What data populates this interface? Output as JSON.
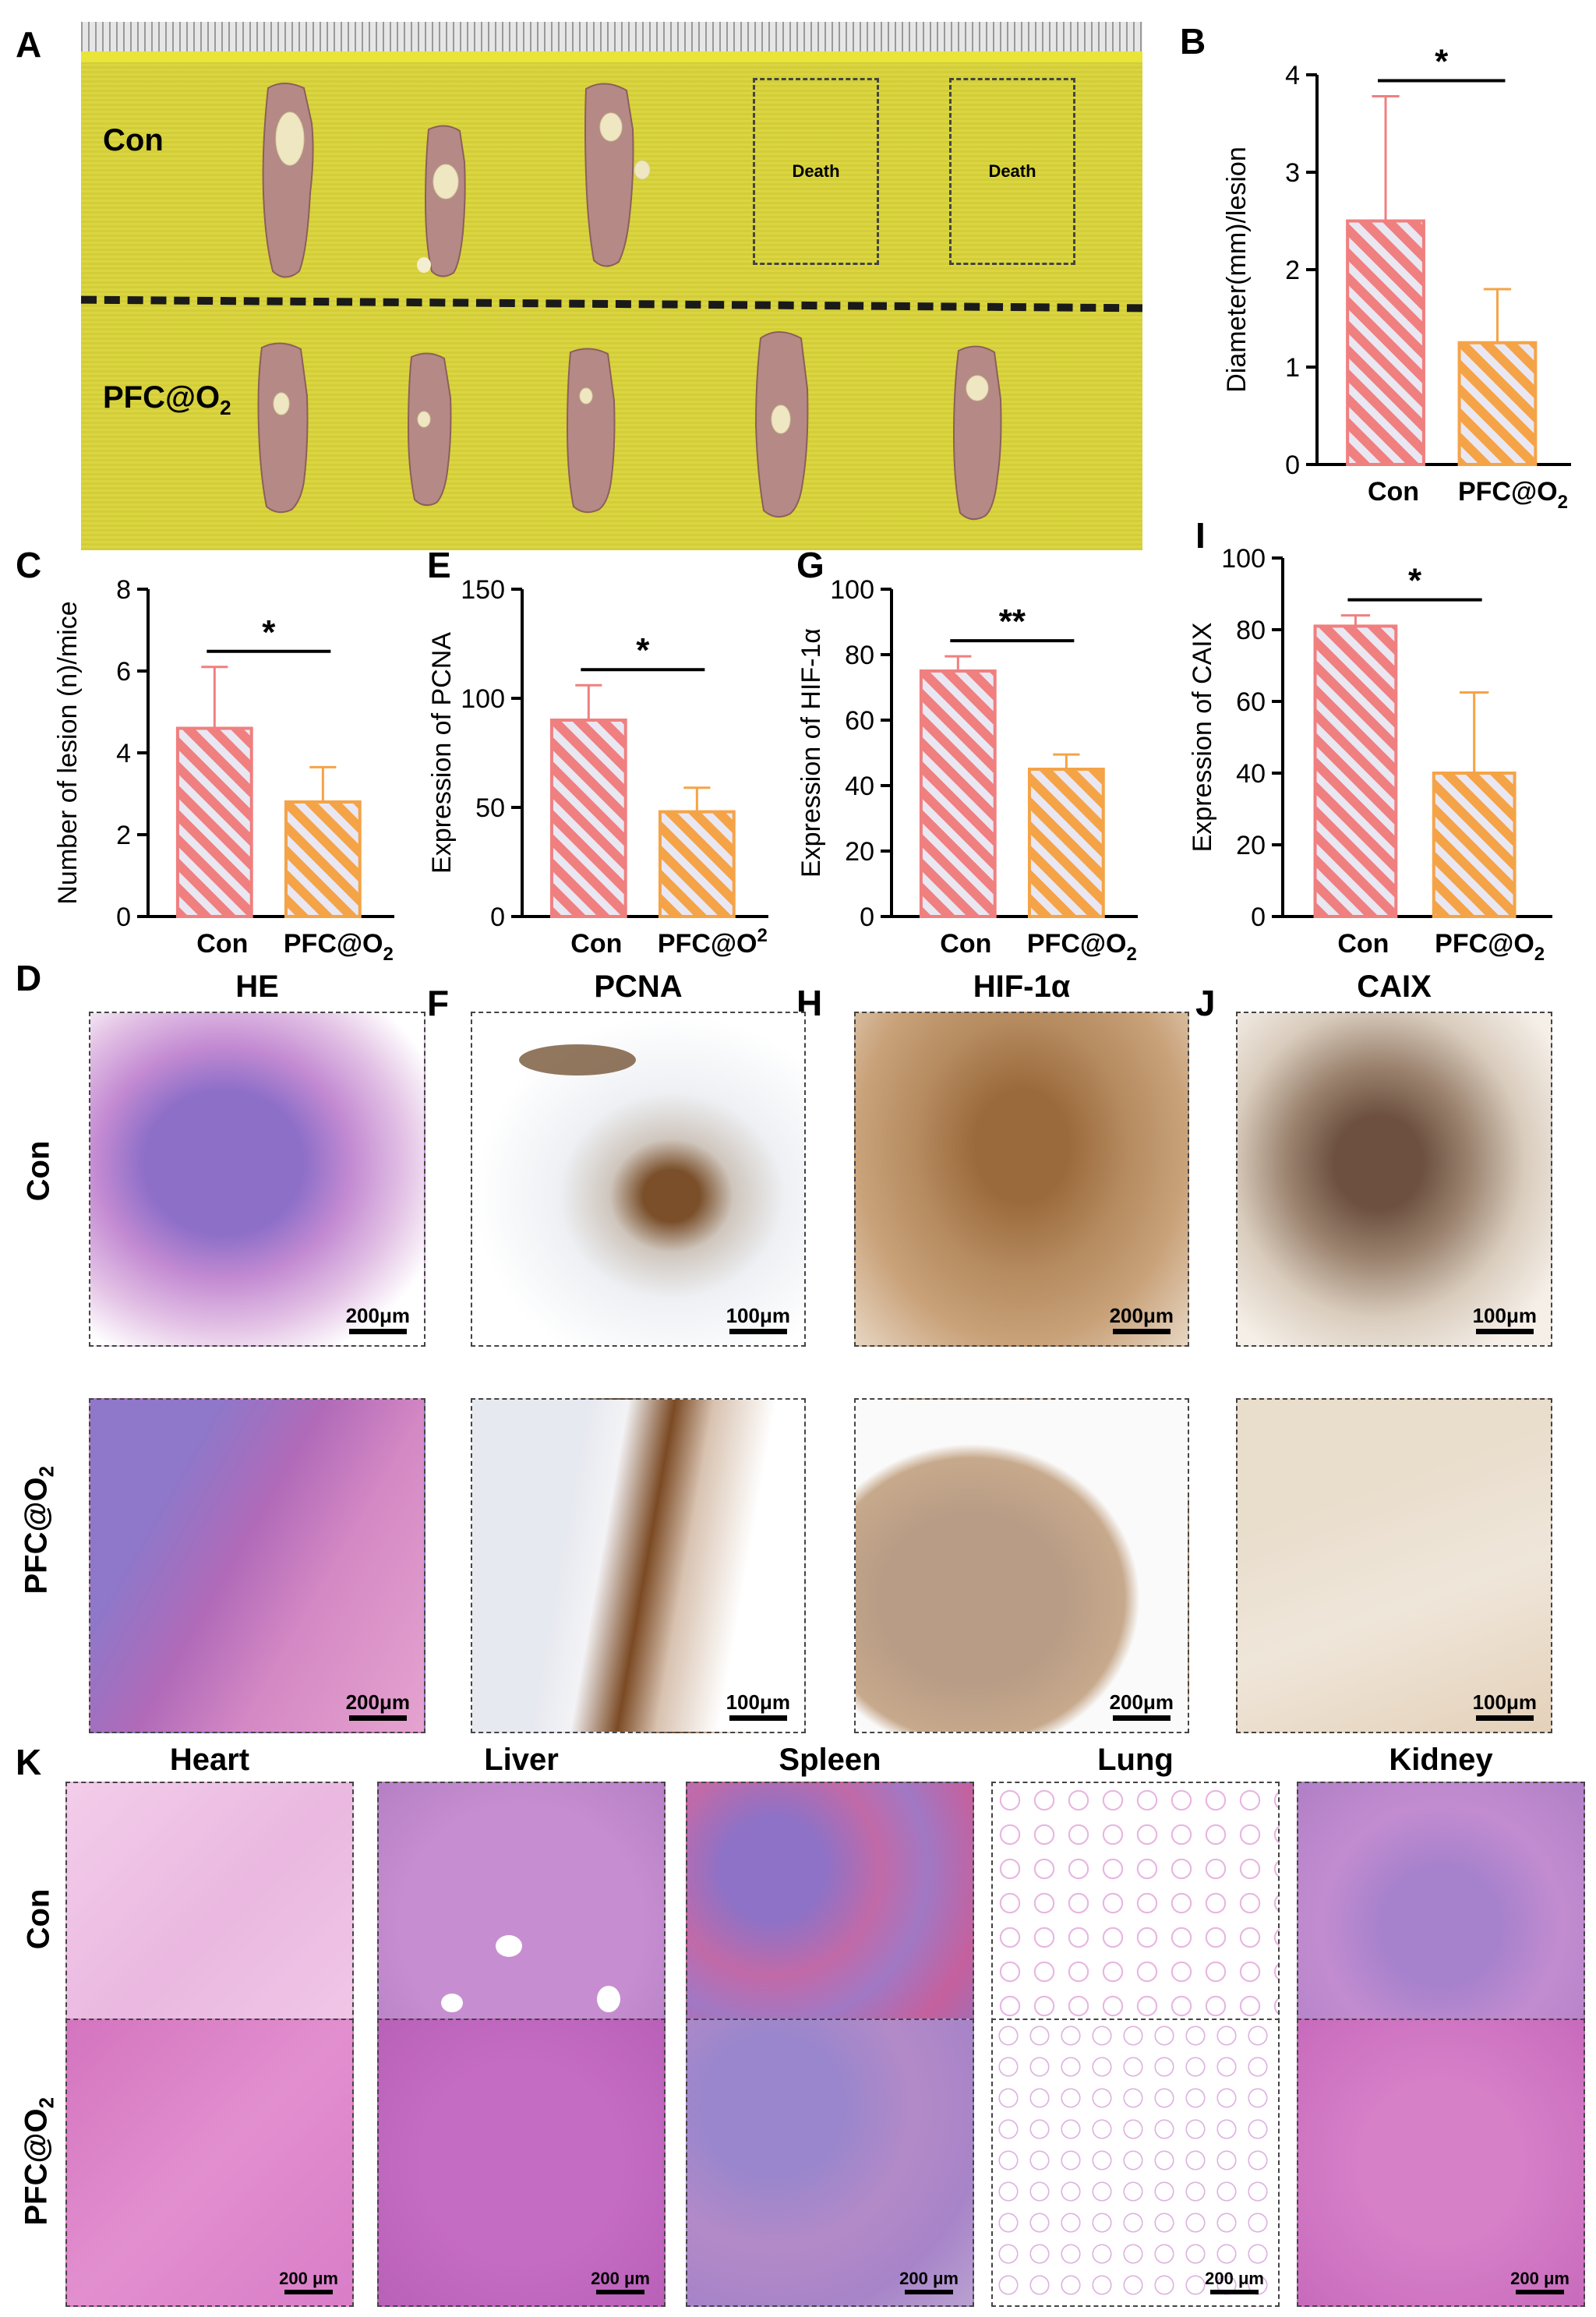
{
  "panel_letters": {
    "A": "A",
    "B": "B",
    "C": "C",
    "D": "D",
    "E": "E",
    "F": "F",
    "G": "G",
    "H": "H",
    "I": "I",
    "J": "J",
    "K": "K"
  },
  "photo": {
    "row_con": "Con",
    "row_pfc": "PFC@O",
    "row_pfc_sub": "2",
    "death1": "Death",
    "death2": "Death"
  },
  "colors": {
    "con_bar": "#f07f7f",
    "pfc_bar": "#f5a347",
    "photo_bg": "#d9d43a",
    "he_stain": "#b16fc0",
    "ihc_brown": "#8a5a2c"
  },
  "chart_data": [
    {
      "panel": "B",
      "type": "bar",
      "categories": [
        "Con",
        "PFC@O2"
      ],
      "values": [
        2.5,
        1.25
      ],
      "errors": [
        1.28,
        0.55
      ],
      "ylabel": "Diameter(mm)/lesion",
      "ylim": [
        0,
        4
      ],
      "yticks": [
        "0",
        "1",
        "2",
        "3",
        "4"
      ],
      "significance": "*",
      "xlabels": {
        "con": "Con",
        "pfc": "PFC@O",
        "pfc_sub": "2"
      }
    },
    {
      "panel": "C",
      "type": "bar",
      "categories": [
        "Con",
        "PFC@O2"
      ],
      "values": [
        4.6,
        2.8
      ],
      "errors": [
        1.5,
        0.85
      ],
      "ylabel": "Number of lesion (n)/mice",
      "ylim": [
        0,
        8
      ],
      "yticks": [
        "0",
        "2",
        "4",
        "6",
        "8"
      ],
      "significance": "*",
      "xlabels": {
        "con": "Con",
        "pfc": "PFC@O",
        "pfc_sub": "2"
      }
    },
    {
      "panel": "E",
      "type": "bar",
      "categories": [
        "Con",
        "PFC@O2"
      ],
      "values": [
        90,
        48
      ],
      "errors": [
        16,
        11
      ],
      "ylabel": "Expression of PCNA",
      "ylim": [
        0,
        150
      ],
      "yticks": [
        "0",
        "50",
        "100",
        "150"
      ],
      "significance": "*",
      "xlabels": {
        "con": "Con",
        "pfc": "PFC@O",
        "pfc_sup": "2"
      }
    },
    {
      "panel": "G",
      "type": "bar",
      "categories": [
        "Con",
        "PFC@O2"
      ],
      "values": [
        75,
        45
      ],
      "errors": [
        4.5,
        4.5
      ],
      "ylabel": "Expression of HIF-1α",
      "ylim": [
        0,
        100
      ],
      "yticks": [
        "0",
        "20",
        "40",
        "60",
        "80",
        "100"
      ],
      "significance": "**",
      "xlabels": {
        "con": "Con",
        "pfc": "PFC@O",
        "pfc_sub": "2"
      }
    },
    {
      "panel": "I",
      "type": "bar",
      "categories": [
        "Con",
        "PFC@O2"
      ],
      "values": [
        81,
        40
      ],
      "errors": [
        3,
        22.5
      ],
      "ylabel": "Expression of CAIX",
      "ylim": [
        0,
        100
      ],
      "yticks": [
        "0",
        "20",
        "40",
        "60",
        "80",
        "100"
      ],
      "significance": "*",
      "xlabels": {
        "con": "Con",
        "pfc": "PFC@O",
        "pfc_sub": "2"
      }
    }
  ],
  "histology": {
    "titles": {
      "he": "HE",
      "pcna": "PCNA",
      "hif": "HIF-1α",
      "caix": "CAIX"
    },
    "rows": {
      "con": "Con",
      "pfc": "PFC@O",
      "pfc_sub": "2"
    },
    "scale": {
      "he": "200μm",
      "pcna": "100μm",
      "hif": "200μm",
      "caix": "100μm"
    }
  },
  "organs": {
    "titles": {
      "heart": "Heart",
      "liver": "Liver",
      "spleen": "Spleen",
      "lung": "Lung",
      "kidney": "Kidney"
    },
    "rows": {
      "con": "Con",
      "pfc": "PFC@O",
      "pfc_sub": "2"
    },
    "scale": "200 μm"
  }
}
